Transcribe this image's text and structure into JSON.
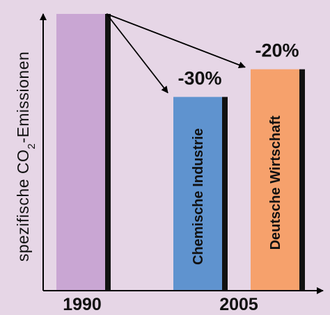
{
  "chart_data": {
    "type": "bar",
    "ylabel_parts": [
      "spezifische CO",
      "2",
      "-Emissionen"
    ],
    "x_ticks": [
      "1990",
      "2005"
    ],
    "ylim": [
      0,
      100
    ],
    "bars": [
      {
        "period": "1990",
        "value": 100,
        "color": "#c9a6d3",
        "label": "",
        "change": ""
      },
      {
        "period": "2005",
        "value": 70,
        "color": "#5f93cf",
        "label": "Chemische Industrie",
        "change": "-30%"
      },
      {
        "period": "2005",
        "value": 80,
        "color": "#f6a16c",
        "label": "Deutsche Wirtschaft",
        "change": "-20%"
      }
    ],
    "grid": false,
    "legend": "none"
  },
  "colors": {
    "background": "#e6d6e6",
    "axis": "#000000",
    "bar_shadow": "#111111"
  }
}
